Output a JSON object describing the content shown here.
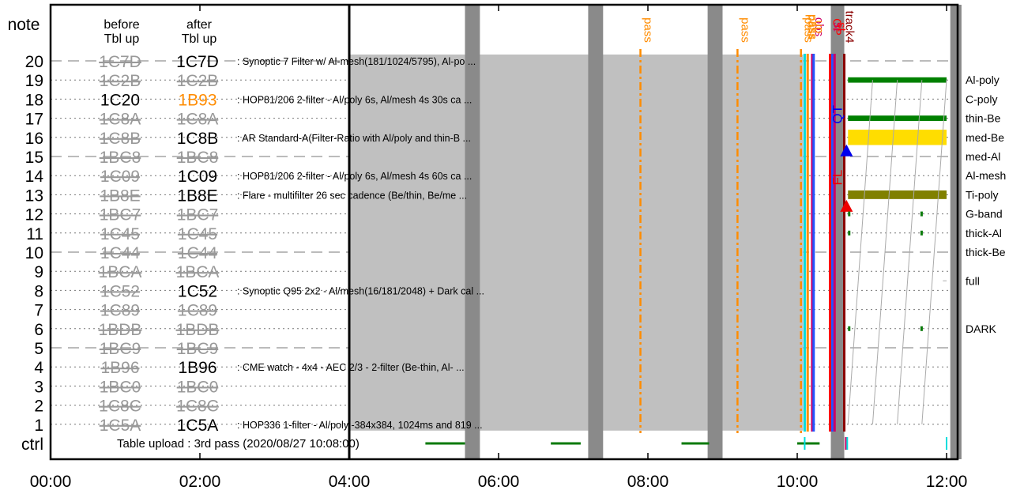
{
  "chart_data": {
    "type": "timeline",
    "x_ticks": [
      "00:00",
      "02:00",
      "04:00",
      "06:00",
      "08:00",
      "10:00",
      "12:00"
    ],
    "x_range_hours": [
      0,
      12
    ],
    "header": {
      "note": "note",
      "before": [
        "before",
        "Tbl up"
      ],
      "after": [
        "after",
        "Tbl up"
      ],
      "ctrl": "ctrl"
    },
    "rows": [
      {
        "n": "20",
        "before": "1C7D",
        "before_struck": true,
        "after": "1C7D",
        "after_struck": false,
        "after_color": "#000000",
        "desc": ": Synoptic 7 Filter w/ Al-mesh(181/1024/5795), Al-po ...",
        "dashed": true
      },
      {
        "n": "19",
        "before": "1C2B",
        "before_struck": true,
        "after": "1C2B",
        "after_struck": true,
        "after_color": "#999999",
        "desc": "",
        "dashed": false
      },
      {
        "n": "18",
        "before": "1C20",
        "before_struck": false,
        "after": "1B93",
        "after_struck": false,
        "after_color": "#ff8c00",
        "desc": ": HOP81/206 2-filter - Al/poly 6s, Al/mesh 4s 30s ca ...",
        "dashed": false
      },
      {
        "n": "17",
        "before": "1C8A",
        "before_struck": true,
        "after": "1C8A",
        "after_struck": true,
        "after_color": "#999999",
        "desc": "",
        "dashed": false
      },
      {
        "n": "16",
        "before": "1C8B",
        "before_struck": true,
        "after": "1C8B",
        "after_struck": false,
        "after_color": "#000000",
        "desc": ": AR Standard-A(Filter-Ratio with Al/poly and thin-B ...",
        "dashed": false
      },
      {
        "n": "15",
        "before": "1BC8",
        "before_struck": true,
        "after": "1BC8",
        "after_struck": true,
        "after_color": "#999999",
        "desc": "",
        "dashed": true
      },
      {
        "n": "14",
        "before": "1C09",
        "before_struck": true,
        "after": "1C09",
        "after_struck": false,
        "after_color": "#000000",
        "desc": ": HOP81/206 2-filter - Al/poly 6s, Al/mesh 4s 60s ca ...",
        "dashed": false
      },
      {
        "n": "13",
        "before": "1B8E",
        "before_struck": true,
        "after": "1B8E",
        "after_struck": false,
        "after_color": "#000000",
        "desc": ": Flare - multifilter 26 sec cadence (Be/thin, Be/me ...",
        "dashed": false
      },
      {
        "n": "12",
        "before": "1BC7",
        "before_struck": true,
        "after": "1BC7",
        "after_struck": true,
        "after_color": "#999999",
        "desc": "",
        "dashed": false
      },
      {
        "n": "11",
        "before": "1C45",
        "before_struck": true,
        "after": "1C45",
        "after_struck": true,
        "after_color": "#999999",
        "desc": "",
        "dashed": false
      },
      {
        "n": "10",
        "before": "1C44",
        "before_struck": true,
        "after": "1C44",
        "after_struck": true,
        "after_color": "#999999",
        "desc": "",
        "dashed": true
      },
      {
        "n": "9",
        "before": "1BCA",
        "before_struck": true,
        "after": "1BCA",
        "after_struck": true,
        "after_color": "#999999",
        "desc": "",
        "dashed": false
      },
      {
        "n": "8",
        "before": "1C52",
        "before_struck": true,
        "after": "1C52",
        "after_struck": false,
        "after_color": "#000000",
        "desc": ": Synoptic Q95 2x2 - Al/mesh(16/181/2048) + Dark cal ...",
        "dashed": false
      },
      {
        "n": "7",
        "before": "1C89",
        "before_struck": true,
        "after": "1C89",
        "after_struck": true,
        "after_color": "#999999",
        "desc": "",
        "dashed": false
      },
      {
        "n": "6",
        "before": "1BDB",
        "before_struck": true,
        "after": "1BDB",
        "after_struck": true,
        "after_color": "#999999",
        "desc": "",
        "dashed": false
      },
      {
        "n": "5",
        "before": "1BC9",
        "before_struck": true,
        "after": "1BC9",
        "after_struck": true,
        "after_color": "#999999",
        "desc": "",
        "dashed": true
      },
      {
        "n": "4",
        "before": "1B96",
        "before_struck": true,
        "after": "1B96",
        "after_struck": false,
        "after_color": "#000000",
        "desc": ": CME watch - 4x4 - AEC 2/3 - 2-filter (Be-thin, Al- ...",
        "dashed": false
      },
      {
        "n": "3",
        "before": "1BC0",
        "before_struck": true,
        "after": "1BC0",
        "after_struck": true,
        "after_color": "#999999",
        "desc": "",
        "dashed": false
      },
      {
        "n": "2",
        "before": "1C8C",
        "before_struck": true,
        "after": "1C8C",
        "after_struck": true,
        "after_color": "#999999",
        "desc": "",
        "dashed": false
      },
      {
        "n": "1",
        "before": "1C5A",
        "before_struck": true,
        "after": "1C5A",
        "after_struck": false,
        "after_color": "#000000",
        "desc": ": HOP336 1-filter - Al/poly -384x384, 1024ms and 819 ...",
        "dashed": false
      }
    ],
    "right_labels": [
      {
        "row": 19,
        "label": "Al-poly"
      },
      {
        "row": 18,
        "label": "C-poly"
      },
      {
        "row": 17,
        "label": "thin-Be"
      },
      {
        "row": 16,
        "label": "med-Be"
      },
      {
        "row": 15,
        "label": "med-Al"
      },
      {
        "row": 14,
        "label": "Al-mesh"
      },
      {
        "row": 13,
        "label": "Ti-poly"
      },
      {
        "row": 12,
        "label": "G-band"
      },
      {
        "row": 11,
        "label": "thick-Al"
      },
      {
        "row": 10,
        "label": "thick-Be"
      },
      {
        "row": 8.5,
        "label": "full"
      },
      {
        "row": 6,
        "label": "DARK"
      }
    ],
    "ctrl_text": "Table upload : 3rd pass (2020/08/27 10:08:00)",
    "gray_block": {
      "start": 4.0,
      "end": 10.08,
      "top_row": 20,
      "bottom_row": 1
    },
    "gray_bars": [
      [
        5.55,
        5.75
      ],
      [
        7.2,
        7.4
      ],
      [
        8.8,
        9.0
      ],
      [
        10.45,
        10.63
      ],
      [
        12.05,
        12.2
      ]
    ],
    "green_ctrl": [
      [
        5.02,
        5.55
      ],
      [
        6.7,
        7.1
      ],
      [
        8.45,
        8.82
      ],
      [
        10.0,
        10.3
      ]
    ],
    "passes": [
      {
        "t": 7.9,
        "label": "pass"
      },
      {
        "t": 9.2,
        "label": "pass"
      },
      {
        "t": 10.05,
        "label": "pass"
      }
    ],
    "colored_lines": [
      {
        "t": 10.1,
        "color": "#00dddd",
        "label": "pass",
        "label_color": "#ff8c00"
      },
      {
        "t": 10.14,
        "color": "#ff8c00",
        "label": "pass",
        "label_color": "#ff8c00"
      },
      {
        "t": 10.2,
        "color": "#cc0066",
        "label": "obs",
        "label_color": "#cc0066"
      },
      {
        "t": 10.22,
        "color": "#2255ff",
        "label": "up",
        "label_color": "#ff8c00"
      },
      {
        "t": 10.44,
        "color": "#ff0000",
        "label": "OP",
        "label_color": "#ff0000"
      },
      {
        "t": 10.47,
        "color": "#2255ff",
        "label": "st",
        "label_color": "#cc0066"
      },
      {
        "t": 10.5,
        "color": "#cc0066",
        "label": "st",
        "label_color": "#ff0000"
      },
      {
        "t": 10.63,
        "color": "#8b0000",
        "label": "track4",
        "label_color": "#8b0000"
      }
    ],
    "markers": [
      {
        "t": 10.66,
        "row": 15.3,
        "color": "#0000ee",
        "label": "QT",
        "label_row": 17.2
      },
      {
        "t": 10.66,
        "row": 12.4,
        "color": "#ee0000",
        "label": "FL",
        "label_row": 13.9
      }
    ],
    "bars": [
      {
        "row": 19,
        "start": 10.68,
        "end": 12.0,
        "color": "#008000",
        "h": 0.28
      },
      {
        "row": 17,
        "start": 10.68,
        "end": 12.0,
        "color": "#008000",
        "h": 0.28
      },
      {
        "row": 16,
        "start": 10.68,
        "end": 12.0,
        "color": "#ffdd00",
        "h": 0.8
      },
      {
        "row": 13,
        "start": 10.68,
        "end": 12.0,
        "color": "#808000",
        "h": 0.45
      }
    ],
    "ticks": [
      {
        "row": 12,
        "t": 10.68
      },
      {
        "row": 12,
        "t": 11.65
      },
      {
        "row": 11,
        "t": 10.68
      },
      {
        "row": 11,
        "t": 11.65
      },
      {
        "row": 6,
        "t": 10.68
      },
      {
        "row": 6,
        "t": 11.65
      }
    ]
  }
}
